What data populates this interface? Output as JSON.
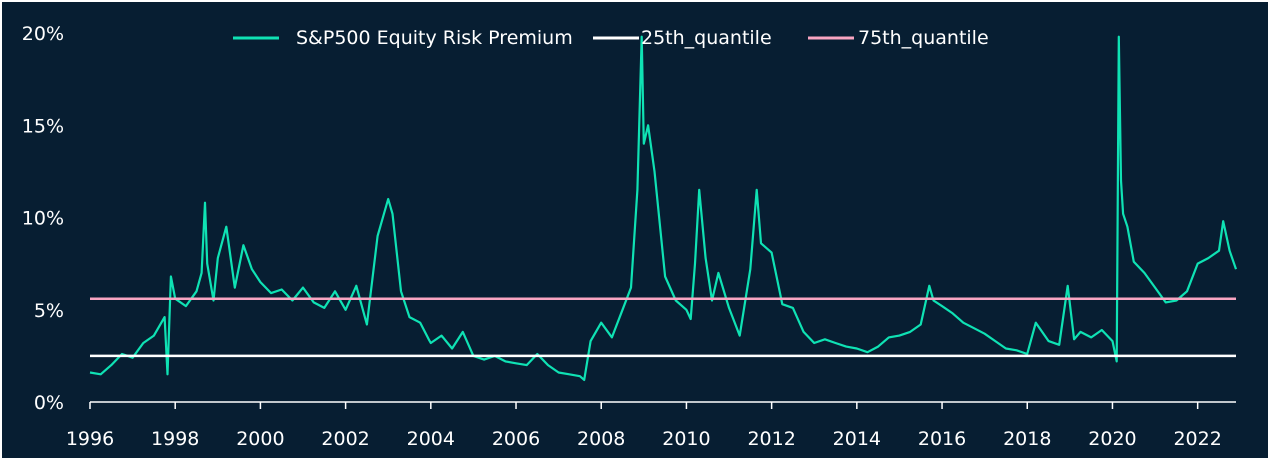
{
  "chart_data": {
    "type": "line",
    "title": "",
    "xlabel": "",
    "ylabel": "",
    "xlim": [
      1996,
      2022.9
    ],
    "ylim": [
      0,
      20
    ],
    "x_ticks": [
      1996,
      1998,
      2000,
      2002,
      2004,
      2006,
      2008,
      2010,
      2012,
      2014,
      2016,
      2018,
      2020,
      2022
    ],
    "x_tick_labels": [
      "1996",
      "1998",
      "2000",
      "2002",
      "2004",
      "2006",
      "2008",
      "2010",
      "2012",
      "2014",
      "2016",
      "2018",
      "2020",
      "2022"
    ],
    "y_ticks": [
      0,
      5,
      10,
      15,
      20
    ],
    "y_tick_labels": [
      "0%",
      "5%",
      "10%",
      "15%",
      "20%"
    ],
    "legend_position": "top-center",
    "grid": false,
    "series": [
      {
        "name": "S&P500 Equity Risk Premium",
        "color": "#0fe2b4",
        "x": [
          1996.0,
          1996.25,
          1996.5,
          1996.75,
          1997.0,
          1997.25,
          1997.5,
          1997.75,
          1997.82,
          1997.9,
          1998.0,
          1998.25,
          1998.5,
          1998.62,
          1998.7,
          1998.75,
          1998.9,
          1999.0,
          1999.2,
          1999.4,
          1999.6,
          1999.8,
          2000.0,
          2000.25,
          2000.5,
          2000.75,
          2001.0,
          2001.25,
          2001.5,
          2001.75,
          2002.0,
          2002.25,
          2002.5,
          2002.75,
          2003.0,
          2003.1,
          2003.3,
          2003.5,
          2003.75,
          2003.95,
          2004.0,
          2004.25,
          2004.5,
          2004.75,
          2005.0,
          2005.25,
          2005.5,
          2005.75,
          2006.0,
          2006.25,
          2006.5,
          2006.75,
          2007.0,
          2007.25,
          2007.5,
          2007.6,
          2007.75,
          2008.0,
          2008.25,
          2008.5,
          2008.7,
          2008.85,
          2008.95,
          2009.0,
          2009.1,
          2009.25,
          2009.5,
          2009.75,
          2010.0,
          2010.1,
          2010.2,
          2010.3,
          2010.45,
          2010.6,
          2010.75,
          2011.0,
          2011.25,
          2011.5,
          2011.65,
          2011.75,
          2012.0,
          2012.25,
          2012.5,
          2012.75,
          2013.0,
          2013.25,
          2013.5,
          2013.75,
          2014.0,
          2014.25,
          2014.5,
          2014.75,
          2015.0,
          2015.25,
          2015.5,
          2015.7,
          2015.8,
          2016.0,
          2016.25,
          2016.5,
          2016.75,
          2017.0,
          2017.25,
          2017.5,
          2017.75,
          2018.0,
          2018.2,
          2018.5,
          2018.75,
          2018.95,
          2019.1,
          2019.25,
          2019.5,
          2019.75,
          2020.0,
          2020.1,
          2020.15,
          2020.2,
          2020.25,
          2020.35,
          2020.5,
          2020.75,
          2021.0,
          2021.25,
          2021.5,
          2021.75,
          2022.0,
          2022.25,
          2022.5,
          2022.6,
          2022.75,
          2022.9
        ],
        "y": [
          1.6,
          1.5,
          2.0,
          2.6,
          2.4,
          3.2,
          3.6,
          4.6,
          1.5,
          6.8,
          5.6,
          5.2,
          6.0,
          7.0,
          10.8,
          7.5,
          5.5,
          7.8,
          9.5,
          6.2,
          8.5,
          7.2,
          6.5,
          5.9,
          6.1,
          5.5,
          6.2,
          5.4,
          5.1,
          6.0,
          5.0,
          6.3,
          4.2,
          9.0,
          11.0,
          10.2,
          6.0,
          4.6,
          4.3,
          3.4,
          3.2,
          3.6,
          2.9,
          3.8,
          2.5,
          2.3,
          2.5,
          2.2,
          2.1,
          2.0,
          2.6,
          2.0,
          1.6,
          1.5,
          1.4,
          1.2,
          3.3,
          4.3,
          3.5,
          5.0,
          6.2,
          11.5,
          19.8,
          14.0,
          15.0,
          12.5,
          6.8,
          5.5,
          5.0,
          4.5,
          7.5,
          11.5,
          7.8,
          5.5,
          7.0,
          5.1,
          3.6,
          7.2,
          11.5,
          8.6,
          8.1,
          5.3,
          5.1,
          3.8,
          3.2,
          3.4,
          3.2,
          3.0,
          2.9,
          2.7,
          3.0,
          3.5,
          3.6,
          3.8,
          4.2,
          6.3,
          5.5,
          5.2,
          4.8,
          4.3,
          4.0,
          3.7,
          3.3,
          2.9,
          2.8,
          2.6,
          4.3,
          3.3,
          3.1,
          6.3,
          3.4,
          3.8,
          3.5,
          3.9,
          3.3,
          2.2,
          19.8,
          12.0,
          10.2,
          9.5,
          7.6,
          7.0,
          6.2,
          5.4,
          5.5,
          6.0,
          7.5,
          7.8,
          8.2,
          9.8,
          8.2,
          7.2
        ]
      },
      {
        "name": "25th_quantile",
        "color": "#ffffff",
        "x": [
          1996.0,
          2022.9
        ],
        "y": [
          2.5,
          2.5
        ]
      },
      {
        "name": "75th_quantile",
        "color": "#f8a5c2",
        "x": [
          1996.0,
          2022.9
        ],
        "y": [
          5.6,
          5.6
        ]
      }
    ]
  }
}
